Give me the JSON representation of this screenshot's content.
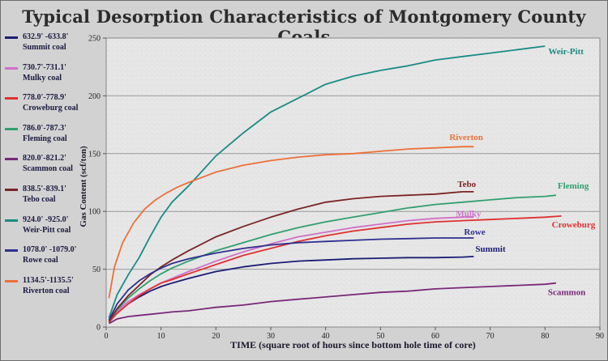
{
  "chart_data": {
    "type": "line",
    "title": "Typical Desorption Characteristics of Montgomery County Coals",
    "xlabel": "TIME (square root of hours since bottom hole time of core)",
    "ylabel": "Gas Content (scf/ton)",
    "xlim": [
      0,
      90
    ],
    "ylim": [
      0,
      250
    ],
    "xticks": [
      0,
      10,
      20,
      30,
      40,
      50,
      60,
      70,
      80,
      90
    ],
    "yticks": [
      0,
      50,
      100,
      150,
      200,
      250
    ],
    "grid": true,
    "legend_position": "left",
    "series": [
      {
        "legend_depth": "632.9' -633.8'",
        "legend_name": "Summit coal",
        "label": "Summit",
        "color": "#1c1c74",
        "x": [
          0.5,
          2,
          4,
          6,
          8,
          10,
          12,
          15,
          20,
          25,
          30,
          35,
          40,
          45,
          50,
          55,
          60,
          65,
          67
        ],
        "y": [
          5,
          12,
          20,
          26,
          31,
          35,
          38,
          42,
          48,
          52,
          55,
          57,
          58,
          59,
          59.5,
          60,
          60,
          60.5,
          61
        ]
      },
      {
        "legend_depth": "730.7'-731.1'",
        "legend_name": "Mulky coal",
        "label": "Mulky",
        "color": "#d070c8",
        "x": [
          0.5,
          2,
          4,
          6,
          8,
          10,
          12,
          15,
          20,
          25,
          30,
          35,
          40,
          45,
          50,
          55,
          60,
          65,
          67
        ],
        "y": [
          5,
          14,
          22,
          28,
          33,
          38,
          42,
          48,
          57,
          65,
          72,
          78,
          82,
          86,
          89,
          92,
          94,
          95,
          95
        ]
      },
      {
        "legend_depth": "778.0'-778.9'",
        "legend_name": "Croweburg coal",
        "label": "Croweburg",
        "color": "#e03030",
        "x": [
          0.5,
          2,
          4,
          6,
          8,
          10,
          12,
          15,
          20,
          25,
          30,
          35,
          40,
          45,
          50,
          55,
          60,
          65,
          70,
          75,
          80,
          83
        ],
        "y": [
          4,
          12,
          20,
          27,
          33,
          38,
          41,
          46,
          54,
          62,
          68,
          74,
          79,
          83,
          86,
          89,
          91,
          92,
          93,
          94,
          95,
          96
        ]
      },
      {
        "legend_depth": "786.0'-787.3'",
        "legend_name": "Fleming coal",
        "label": "Fleming",
        "color": "#30a070",
        "x": [
          0.5,
          2,
          4,
          6,
          8,
          10,
          12,
          15,
          20,
          25,
          30,
          35,
          40,
          45,
          50,
          55,
          60,
          65,
          70,
          75,
          80,
          82
        ],
        "y": [
          5,
          15,
          25,
          33,
          40,
          46,
          51,
          57,
          66,
          73,
          80,
          86,
          91,
          95,
          99,
          103,
          106,
          108,
          110,
          112,
          113,
          114
        ]
      },
      {
        "legend_depth": "820.0'-821.2'",
        "legend_name": "Scammon coal",
        "label": "Scammon",
        "color": "#782878",
        "x": [
          0.5,
          2,
          4,
          6,
          8,
          10,
          12,
          15,
          20,
          25,
          30,
          35,
          40,
          45,
          50,
          55,
          60,
          65,
          70,
          75,
          80,
          82
        ],
        "y": [
          3,
          7,
          9,
          10,
          11,
          12,
          13,
          14,
          17,
          19,
          22,
          24,
          26,
          28,
          30,
          31,
          33,
          34,
          35,
          36,
          37,
          38
        ]
      },
      {
        "legend_depth": "838.5'-839.1'",
        "legend_name": "Tebo coal",
        "label": "Tebo",
        "color": "#7a2424",
        "x": [
          0.5,
          2,
          4,
          6,
          8,
          10,
          12,
          15,
          20,
          25,
          30,
          35,
          40,
          45,
          50,
          55,
          60,
          65,
          67
        ],
        "y": [
          5,
          16,
          27,
          36,
          45,
          52,
          58,
          66,
          78,
          87,
          95,
          102,
          108,
          111,
          113,
          114,
          115,
          117,
          117
        ]
      },
      {
        "legend_depth": "924.0' -925.0'",
        "legend_name": "Weir-Pitt coal",
        "label": "Weir-Pitt",
        "color": "#1a8c84",
        "x": [
          0.5,
          2,
          4,
          6,
          8,
          10,
          12,
          15,
          20,
          25,
          30,
          35,
          40,
          45,
          50,
          55,
          60,
          65,
          70,
          75,
          80
        ],
        "y": [
          8,
          28,
          45,
          60,
          78,
          95,
          108,
          122,
          148,
          168,
          186,
          198,
          210,
          217,
          222,
          226,
          231,
          234,
          237,
          240,
          243
        ]
      },
      {
        "legend_depth": "1078.0' -1079.0'",
        "legend_name": "Rowe coal",
        "label": "Rowe",
        "color": "#303090",
        "x": [
          0.5,
          2,
          4,
          6,
          8,
          10,
          12,
          15,
          20,
          25,
          30,
          35,
          40,
          45,
          50,
          55,
          60,
          65,
          67
        ],
        "y": [
          6,
          20,
          32,
          40,
          46,
          51,
          55,
          59,
          64,
          68,
          71,
          73,
          74,
          75,
          76,
          76.5,
          77,
          77,
          77
        ]
      },
      {
        "legend_depth": "1134.5'-1135.5'",
        "legend_name": "Riverton coal",
        "label": "Riverton",
        "color": "#ec7038",
        "x": [
          0.5,
          1.5,
          3,
          5,
          7,
          9,
          11,
          13,
          15,
          20,
          25,
          30,
          35,
          40,
          45,
          50,
          55,
          60,
          65,
          67
        ],
        "y": [
          25,
          52,
          73,
          90,
          102,
          110,
          116,
          121,
          125,
          134,
          140,
          144,
          147,
          149,
          150,
          152,
          154,
          155,
          156,
          156
        ]
      }
    ]
  }
}
